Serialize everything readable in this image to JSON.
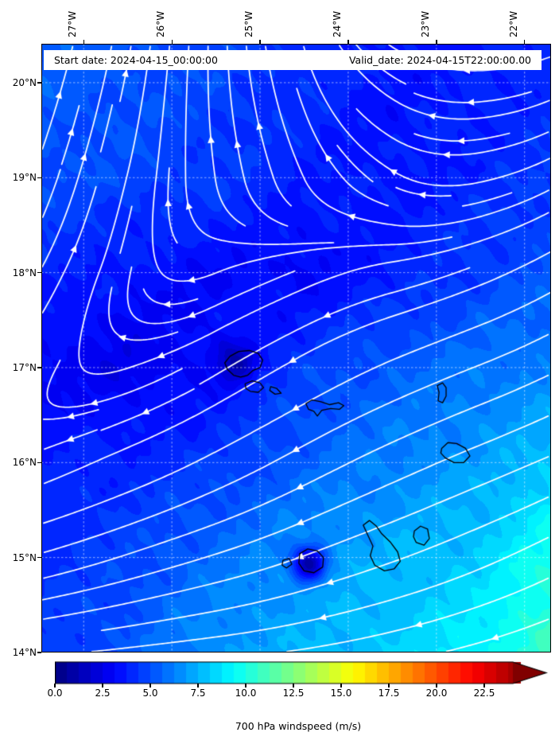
{
  "annotation": {
    "start_date": "Start date: 2024-04-15_00:00:00",
    "valid_date": "Valid_date: 2024-04-15T22:00:00.00"
  },
  "x_axis": {
    "ticks": [
      {
        "label": "27°W",
        "value": -27
      },
      {
        "label": "26°W",
        "value": -26
      },
      {
        "label": "25°W",
        "value": -25
      },
      {
        "label": "24°W",
        "value": -24
      },
      {
        "label": "23°W",
        "value": -23
      },
      {
        "label": "22°W",
        "value": -22
      }
    ]
  },
  "y_axis": {
    "ticks": [
      {
        "label": "20°N",
        "value": 20
      },
      {
        "label": "19°N",
        "value": 19
      },
      {
        "label": "18°N",
        "value": 18
      },
      {
        "label": "17°N",
        "value": 17
      },
      {
        "label": "16°N",
        "value": 16
      },
      {
        "label": "15°N",
        "value": 15
      },
      {
        "label": "14°N",
        "value": 14
      }
    ]
  },
  "colorbar": {
    "label": "700 hPa windspeed (m/s)",
    "tick_labels": [
      "0.0",
      "2.5",
      "5.0",
      "7.5",
      "10.0",
      "12.5",
      "15.0",
      "17.5",
      "20.0",
      "22.5"
    ],
    "tick_values": [
      0,
      2.5,
      5,
      7.5,
      10,
      12.5,
      15,
      17.5,
      20,
      22.5
    ],
    "vmin": 0,
    "vmax": 25,
    "level_step": 0.625,
    "colormap": "jet",
    "extend": "max",
    "extend_color": "#800000"
  },
  "chart_data": {
    "type": "streamplot_contourf_map",
    "title": "",
    "variable": "700 hPa windspeed (m/s)",
    "line_color": "#ffffff",
    "coast_color": "#000000",
    "extent": {
      "lon_min": -27.48,
      "lon_max": -21.7,
      "lat_min": 14.0,
      "lat_max": 20.41
    },
    "grid_lons": [
      -27.5,
      -26.5,
      -25.5,
      -24.5,
      -23.5,
      -22.5,
      -21.7
    ],
    "grid_lats": [
      20.4,
      19,
      18,
      17,
      16,
      15,
      14
    ],
    "windspeed_ms": [
      [
        5.5,
        5.2,
        4.8,
        4.2,
        3.5,
        3.7,
        4.0
      ],
      [
        5.0,
        4.8,
        4.5,
        3.8,
        3.5,
        4.0,
        4.4
      ],
      [
        4.0,
        3.5,
        3.2,
        3.0,
        3.8,
        4.6,
        5.2
      ],
      [
        3.0,
        2.6,
        3.2,
        4.6,
        5.4,
        6.0,
        6.3
      ],
      [
        3.8,
        4.0,
        4.5,
        5.5,
        6.3,
        7.0,
        8.0
      ],
      [
        4.2,
        4.8,
        5.8,
        6.8,
        7.5,
        8.2,
        10.0
      ],
      [
        4.5,
        5.2,
        6.8,
        7.5,
        8.2,
        9.2,
        11.0
      ]
    ],
    "wind_u": [
      [
        0.3,
        0.2,
        0.0,
        -0.3,
        -0.9,
        -1.35,
        -1.2
      ],
      [
        0.35,
        0.25,
        -0.15,
        -0.4,
        -0.9,
        -1.3,
        -1.15
      ],
      [
        0.45,
        0.15,
        -0.8,
        -1.05,
        -1.15,
        -1.2,
        -1.05
      ],
      [
        0.3,
        -0.5,
        -0.9,
        -1.05,
        -1.1,
        -1.1,
        -1.0
      ],
      [
        -0.6,
        -0.85,
        -0.95,
        -1.0,
        -1.05,
        -1.05,
        -1.0
      ],
      [
        -0.95,
        -1.0,
        -1.05,
        -1.05,
        -1.05,
        -1.0,
        -0.95
      ],
      [
        -1.0,
        -1.05,
        -1.1,
        -1.1,
        -1.05,
        -1.0,
        -0.95
      ]
    ],
    "wind_v": [
      [
        0.95,
        1.0,
        1.0,
        0.95,
        0.55,
        0.0,
        -0.4
      ],
      [
        0.9,
        0.95,
        0.95,
        0.8,
        0.5,
        -0.25,
        -0.55
      ],
      [
        0.75,
        0.55,
        -0.3,
        -0.4,
        -0.25,
        -0.45,
        -0.55
      ],
      [
        0.35,
        -0.15,
        -0.5,
        -0.55,
        -0.45,
        -0.4,
        -0.45
      ],
      [
        -0.25,
        -0.35,
        -0.45,
        -0.5,
        -0.45,
        -0.4,
        -0.4
      ],
      [
        -0.25,
        -0.3,
        -0.3,
        -0.35,
        -0.35,
        -0.4,
        -0.45
      ],
      [
        -0.1,
        -0.1,
        -0.1,
        -0.15,
        -0.2,
        -0.25,
        -0.3
      ]
    ],
    "speed_minima": [
      {
        "lon": -25.29,
        "lat": 17.06,
        "value": 1.2,
        "radius": 0.15
      },
      {
        "lon": -24.45,
        "lat": 14.94,
        "value": 1.2,
        "radius": 0.13
      }
    ],
    "islands": [
      [
        [
          -25.4,
          17.05
        ],
        [
          -25.34,
          17.12
        ],
        [
          -25.24,
          17.17
        ],
        [
          -25.12,
          17.18
        ],
        [
          -25.02,
          17.15
        ],
        [
          -24.97,
          17.08
        ],
        [
          -25.0,
          17.0
        ],
        [
          -25.08,
          16.97
        ],
        [
          -25.14,
          16.92
        ],
        [
          -25.22,
          16.9
        ],
        [
          -25.3,
          16.92
        ],
        [
          -25.37,
          16.98
        ]
      ],
      [
        [
          -25.17,
          16.83
        ],
        [
          -25.09,
          16.86
        ],
        [
          -25.0,
          16.84
        ],
        [
          -24.96,
          16.79
        ],
        [
          -25.02,
          16.74
        ],
        [
          -25.11,
          16.75
        ],
        [
          -25.16,
          16.78
        ]
      ],
      [
        [
          -24.88,
          16.8
        ],
        [
          -24.81,
          16.78
        ],
        [
          -24.76,
          16.73
        ],
        [
          -24.83,
          16.72
        ],
        [
          -24.89,
          16.76
        ]
      ],
      [
        [
          -24.48,
          16.62
        ],
        [
          -24.41,
          16.66
        ],
        [
          -24.31,
          16.64
        ],
        [
          -24.21,
          16.61
        ],
        [
          -24.11,
          16.63
        ],
        [
          -24.05,
          16.6
        ],
        [
          -24.1,
          16.56
        ],
        [
          -24.2,
          16.57
        ],
        [
          -24.3,
          16.55
        ],
        [
          -24.35,
          16.49
        ],
        [
          -24.39,
          16.54
        ],
        [
          -24.45,
          16.56
        ]
      ],
      [
        [
          -22.99,
          16.81
        ],
        [
          -22.93,
          16.84
        ],
        [
          -22.89,
          16.79
        ],
        [
          -22.89,
          16.7
        ],
        [
          -22.93,
          16.63
        ],
        [
          -22.98,
          16.65
        ],
        [
          -22.97,
          16.74
        ]
      ],
      [
        [
          -22.94,
          16.15
        ],
        [
          -22.87,
          16.21
        ],
        [
          -22.77,
          16.2
        ],
        [
          -22.67,
          16.15
        ],
        [
          -22.62,
          16.07
        ],
        [
          -22.69,
          16.0
        ],
        [
          -22.8,
          16.0
        ],
        [
          -22.9,
          16.05
        ],
        [
          -22.95,
          16.1
        ]
      ],
      [
        [
          -23.25,
          15.28
        ],
        [
          -23.18,
          15.33
        ],
        [
          -23.1,
          15.3
        ],
        [
          -23.08,
          15.2
        ],
        [
          -23.14,
          15.13
        ],
        [
          -23.23,
          15.16
        ],
        [
          -23.26,
          15.22
        ]
      ],
      [
        [
          -23.83,
          15.34
        ],
        [
          -23.76,
          15.39
        ],
        [
          -23.68,
          15.33
        ],
        [
          -23.62,
          15.25
        ],
        [
          -23.52,
          15.16
        ],
        [
          -23.44,
          15.06
        ],
        [
          -23.41,
          14.96
        ],
        [
          -23.48,
          14.88
        ],
        [
          -23.59,
          14.86
        ],
        [
          -23.7,
          14.92
        ],
        [
          -23.75,
          15.02
        ],
        [
          -23.72,
          15.12
        ],
        [
          -23.78,
          15.24
        ]
      ],
      [
        [
          -24.55,
          15.04
        ],
        [
          -24.46,
          15.09
        ],
        [
          -24.35,
          15.07
        ],
        [
          -24.28,
          15.0
        ],
        [
          -24.29,
          14.9
        ],
        [
          -24.39,
          14.84
        ],
        [
          -24.5,
          14.86
        ],
        [
          -24.56,
          14.94
        ]
      ],
      [
        [
          -24.74,
          14.97
        ],
        [
          -24.67,
          14.99
        ],
        [
          -24.64,
          14.93
        ],
        [
          -24.7,
          14.89
        ],
        [
          -24.75,
          14.92
        ]
      ]
    ]
  }
}
